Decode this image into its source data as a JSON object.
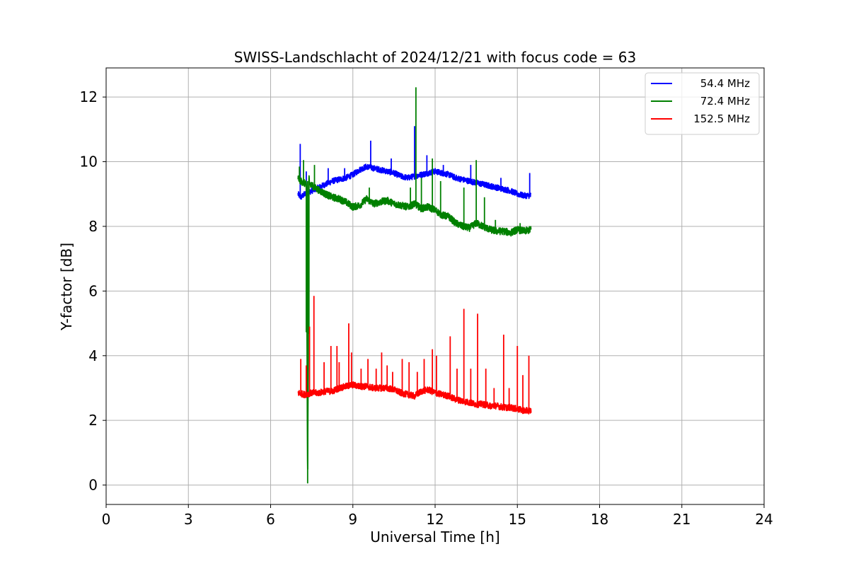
{
  "chart_data": {
    "type": "line",
    "title": "SWISS-Landschlacht of 2024/12/21 with focus code = 63",
    "xlabel": "Universal Time [h]",
    "ylabel": "Y-factor [dB]",
    "xlim": [
      0,
      24
    ],
    "ylim": [
      -0.6,
      12.9
    ],
    "xticks": [
      0,
      3,
      6,
      9,
      12,
      15,
      18,
      21,
      24
    ],
    "yticks": [
      0,
      2,
      4,
      6,
      8,
      10,
      12
    ],
    "grid": true,
    "legend_position": "top-right",
    "series": [
      {
        "name": "54.4 MHz",
        "color": "#0000ff",
        "x": [
          7.0,
          7.1,
          7.25,
          7.5,
          7.75,
          8.0,
          8.25,
          8.5,
          8.75,
          9.0,
          9.25,
          9.5,
          9.75,
          10.0,
          10.25,
          10.5,
          10.75,
          11.0,
          11.25,
          11.5,
          11.75,
          12.0,
          12.25,
          12.5,
          12.75,
          13.0,
          13.25,
          13.5,
          13.75,
          14.0,
          14.25,
          14.5,
          14.75,
          15.0,
          15.25,
          15.5
        ],
        "y": [
          9.0,
          8.9,
          9.0,
          9.1,
          9.2,
          9.3,
          9.4,
          9.45,
          9.5,
          9.6,
          9.75,
          9.85,
          9.8,
          9.75,
          9.7,
          9.65,
          9.55,
          9.5,
          9.55,
          9.6,
          9.65,
          9.7,
          9.65,
          9.6,
          9.5,
          9.45,
          9.4,
          9.35,
          9.3,
          9.25,
          9.2,
          9.15,
          9.1,
          9.0,
          8.95,
          8.95
        ],
        "spikes": [
          [
            7.08,
            10.55
          ],
          [
            7.3,
            9.7
          ],
          [
            8.1,
            9.8
          ],
          [
            8.7,
            9.8
          ],
          [
            9.65,
            10.65
          ],
          [
            10.4,
            10.1
          ],
          [
            11.25,
            11.1
          ],
          [
            11.7,
            10.2
          ],
          [
            12.3,
            9.9
          ],
          [
            13.3,
            9.9
          ],
          [
            14.4,
            9.5
          ],
          [
            15.45,
            9.65
          ]
        ]
      },
      {
        "name": "72.4 MHz",
        "color": "#008000",
        "x": [
          7.0,
          7.1,
          7.3,
          7.35,
          7.4,
          7.45,
          7.6,
          7.8,
          8.0,
          8.25,
          8.5,
          8.75,
          9.0,
          9.25,
          9.5,
          9.75,
          10.0,
          10.25,
          10.5,
          10.75,
          11.0,
          11.25,
          11.5,
          11.75,
          12.0,
          12.25,
          12.5,
          12.75,
          13.0,
          13.25,
          13.5,
          13.75,
          14.0,
          14.25,
          14.5,
          14.75,
          15.0,
          15.25,
          15.5
        ],
        "y": [
          9.5,
          9.4,
          9.3,
          0.05,
          9.5,
          9.3,
          9.2,
          9.1,
          9.0,
          8.9,
          8.85,
          8.75,
          8.6,
          8.65,
          8.85,
          8.7,
          8.75,
          8.8,
          8.7,
          8.65,
          8.6,
          8.7,
          8.55,
          8.6,
          8.5,
          8.35,
          8.3,
          8.1,
          8.0,
          7.95,
          8.1,
          8.0,
          7.9,
          7.85,
          7.85,
          7.8,
          7.9,
          7.85,
          7.9
        ],
        "spikes": [
          [
            7.05,
            9.85
          ],
          [
            7.2,
            10.05
          ],
          [
            7.6,
            9.9
          ],
          [
            9.6,
            9.2
          ],
          [
            11.1,
            9.2
          ],
          [
            11.3,
            12.3
          ],
          [
            11.5,
            9.5
          ],
          [
            11.9,
            10.1
          ],
          [
            12.2,
            9.4
          ],
          [
            13.05,
            9.2
          ],
          [
            13.5,
            10.05
          ],
          [
            13.8,
            8.9
          ],
          [
            14.2,
            8.2
          ],
          [
            15.1,
            8.1
          ]
        ]
      },
      {
        "name": "152.5 MHz",
        "color": "#ff0000",
        "x": [
          7.0,
          7.25,
          7.5,
          7.75,
          8.0,
          8.25,
          8.5,
          8.75,
          9.0,
          9.25,
          9.5,
          9.75,
          10.0,
          10.25,
          10.5,
          10.75,
          11.0,
          11.25,
          11.5,
          11.75,
          12.0,
          12.25,
          12.5,
          12.75,
          13.0,
          13.25,
          13.5,
          13.75,
          14.0,
          14.25,
          14.5,
          14.75,
          15.0,
          15.25,
          15.5
        ],
        "y": [
          2.85,
          2.8,
          2.85,
          2.85,
          2.9,
          2.9,
          3.0,
          3.05,
          3.1,
          3.05,
          3.05,
          3.0,
          3.0,
          3.0,
          2.95,
          2.85,
          2.8,
          2.75,
          2.9,
          2.95,
          2.85,
          2.8,
          2.75,
          2.65,
          2.6,
          2.55,
          2.5,
          2.5,
          2.45,
          2.45,
          2.4,
          2.4,
          2.35,
          2.3,
          2.3
        ],
        "spikes": [
          [
            7.1,
            3.9
          ],
          [
            7.3,
            3.7
          ],
          [
            7.42,
            4.9
          ],
          [
            7.58,
            5.85
          ],
          [
            7.95,
            3.8
          ],
          [
            8.2,
            4.3
          ],
          [
            8.42,
            4.3
          ],
          [
            8.5,
            3.8
          ],
          [
            8.85,
            5.0
          ],
          [
            8.95,
            4.1
          ],
          [
            9.3,
            3.6
          ],
          [
            9.55,
            3.9
          ],
          [
            9.85,
            3.6
          ],
          [
            10.05,
            4.1
          ],
          [
            10.25,
            3.7
          ],
          [
            10.45,
            3.5
          ],
          [
            10.8,
            3.9
          ],
          [
            11.05,
            3.8
          ],
          [
            11.35,
            3.5
          ],
          [
            11.6,
            3.9
          ],
          [
            11.9,
            4.2
          ],
          [
            12.05,
            4.0
          ],
          [
            12.55,
            4.6
          ],
          [
            12.8,
            3.6
          ],
          [
            13.05,
            5.45
          ],
          [
            13.3,
            3.6
          ],
          [
            13.55,
            5.3
          ],
          [
            13.85,
            3.6
          ],
          [
            14.15,
            3.0
          ],
          [
            14.5,
            4.65
          ],
          [
            14.7,
            3.0
          ],
          [
            15.0,
            4.3
          ],
          [
            15.2,
            3.4
          ],
          [
            15.42,
            4.0
          ]
        ]
      }
    ]
  }
}
